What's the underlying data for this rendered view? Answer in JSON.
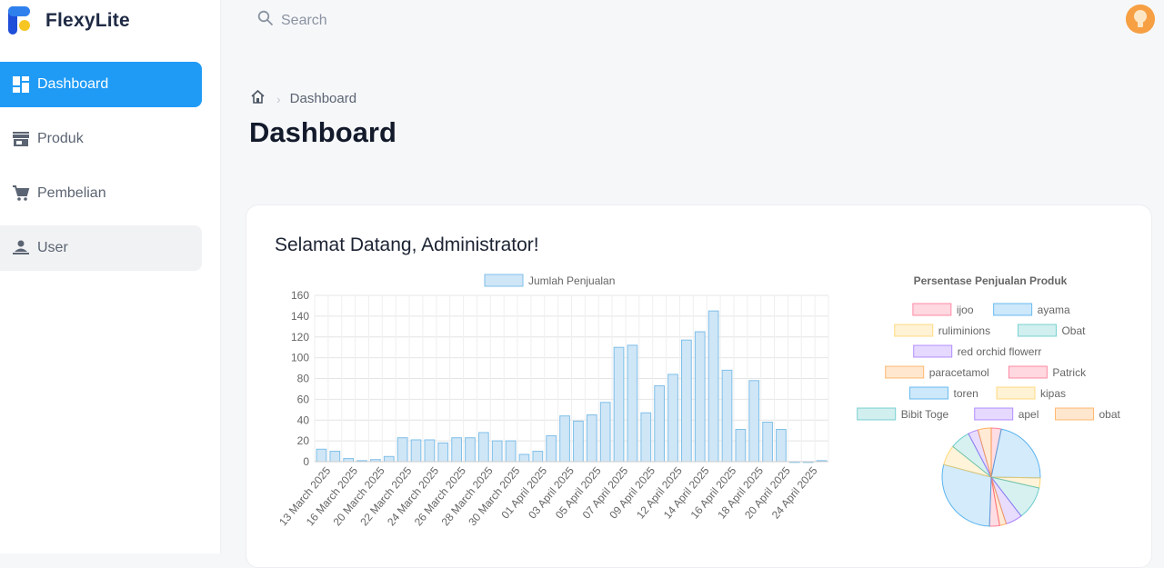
{
  "app": {
    "name": "FlexyLite"
  },
  "sidebar": {
    "items": [
      {
        "label": "Dashboard",
        "icon": "dashboard-icon",
        "active": true
      },
      {
        "label": "Produk",
        "icon": "store-icon"
      },
      {
        "label": "Pembelian",
        "icon": "cart-icon"
      },
      {
        "label": "User",
        "icon": "user-icon"
      }
    ]
  },
  "search": {
    "placeholder": "Search"
  },
  "breadcrumb": {
    "current": "Dashboard"
  },
  "page": {
    "title": "Dashboard",
    "welcome": "Selamat Datang, Administrator!"
  },
  "colors": {
    "accent": "#1f9bf6",
    "bar_fill": "#cfe6f7",
    "bar_stroke": "#7fbfe8"
  },
  "chart_data": [
    {
      "type": "bar",
      "legend": "Jumlah Penjualan",
      "legend_position": "top",
      "grid": true,
      "ylim": [
        0,
        160
      ],
      "yticks": [
        0,
        20,
        40,
        60,
        80,
        100,
        120,
        140,
        160
      ],
      "tick_labels": [
        "13 March 2025",
        "16 March 2025",
        "20 March 2025",
        "22 March 2025",
        "24 March 2025",
        "26 March 2025",
        "28 March 2025",
        "30 March 2025",
        "01 April 2025",
        "03 April 2025",
        "05 April 2025",
        "07 April 2025",
        "09 April 2025",
        "12 April 2025",
        "14 April 2025",
        "16 April 2025",
        "18 April 2025",
        "20 April 2025",
        "24 April 2025"
      ],
      "values": [
        12,
        10,
        3,
        1,
        2,
        5,
        23,
        21,
        21,
        18,
        23,
        23,
        28,
        20,
        20,
        7,
        10,
        25,
        44,
        39,
        45,
        57,
        110,
        112,
        47,
        73,
        84,
        117,
        125,
        145,
        88,
        31,
        78,
        38,
        31,
        0,
        0,
        1
      ]
    },
    {
      "type": "pie",
      "title": "Persentase Penjualan Produk",
      "legend_position": "top",
      "labels": [
        "ijoo",
        "ayama",
        "ruliminions",
        "Obat",
        "red orchid flowerr",
        "paracetamol",
        "Patrick",
        "toren",
        "kipas",
        "Bibit Toge",
        "apel",
        "obat"
      ],
      "colors": [
        "#ff6384",
        "#36a2eb",
        "#ffcd56",
        "#4bc0c0",
        "#9966ff",
        "#ff9f40",
        "#ff6384",
        "#36a2eb",
        "#ffcd56",
        "#4bc0c0",
        "#9966ff",
        "#ff9f40"
      ],
      "values": [
        3,
        20,
        3,
        10,
        5,
        2,
        3,
        26,
        6,
        6,
        3,
        4
      ]
    }
  ]
}
